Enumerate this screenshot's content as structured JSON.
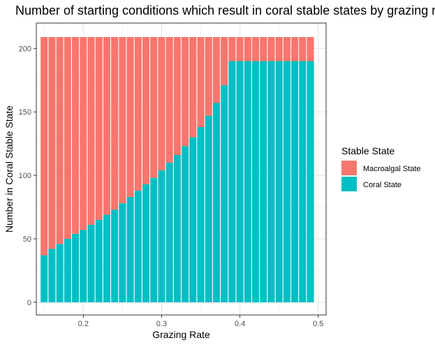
{
  "chart_data": {
    "type": "bar",
    "stacked": true,
    "title": "Number of starting conditions which result in coral stable states by grazing rate",
    "xlabel": "Grazing Rate",
    "ylabel": "Number in Coral Stable State",
    "xlim": [
      0.14,
      0.51
    ],
    "ylim": [
      -10,
      220
    ],
    "xticks": [
      0.2,
      0.3,
      0.4,
      0.5
    ],
    "xtick_labels": [
      "0.2",
      "0.3",
      "0.4",
      "0.5"
    ],
    "yticks": [
      0,
      50,
      100,
      150,
      200
    ],
    "ytick_labels": [
      "0",
      "50",
      "100",
      "150",
      "200"
    ],
    "grid": true,
    "legend": {
      "title": "Stable State",
      "position": "right",
      "entries": [
        {
          "label": "Macroalgal State",
          "color": "#F8766D"
        },
        {
          "label": "Coral State",
          "color": "#00BFC4"
        }
      ]
    },
    "x": [
      0.15,
      0.16,
      0.17,
      0.18,
      0.19,
      0.2,
      0.21,
      0.22,
      0.23,
      0.24,
      0.25,
      0.26,
      0.27,
      0.28,
      0.29,
      0.3,
      0.31,
      0.32,
      0.33,
      0.34,
      0.35,
      0.36,
      0.37,
      0.38,
      0.39,
      0.4,
      0.41,
      0.42,
      0.43,
      0.44,
      0.45,
      0.46,
      0.47,
      0.48,
      0.49
    ],
    "series": [
      {
        "name": "Coral State",
        "color": "#00BFC4",
        "values": [
          37,
          42,
          46,
          50,
          54,
          57,
          61,
          65,
          69,
          73,
          78,
          83,
          88,
          93,
          98,
          104,
          110,
          116,
          123,
          130,
          138,
          147,
          157,
          171,
          190,
          190,
          190,
          190,
          190,
          190,
          190,
          190,
          190,
          190,
          190
        ]
      },
      {
        "name": "Macroalgal State",
        "color": "#F8766D",
        "values": [
          172,
          167,
          163,
          159,
          155,
          152,
          148,
          144,
          140,
          136,
          131,
          126,
          121,
          116,
          111,
          105,
          99,
          93,
          86,
          79,
          71,
          62,
          52,
          38,
          19,
          19,
          19,
          19,
          19,
          19,
          19,
          19,
          19,
          19,
          19
        ]
      }
    ]
  }
}
